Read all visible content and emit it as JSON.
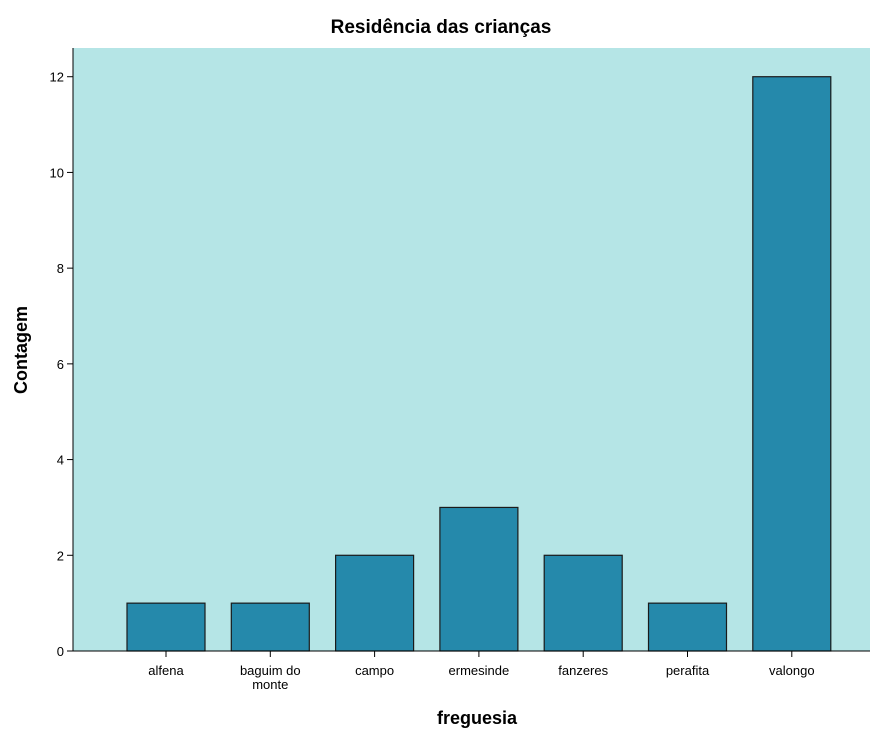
{
  "chart_data": {
    "type": "bar",
    "title": "Residência das crianças",
    "xlabel": "freguesia",
    "ylabel": "Contagem",
    "categories": [
      "alfena",
      "baguim do monte",
      "campo",
      "ermesinde",
      "fanzeres",
      "perafita",
      "valongo"
    ],
    "values": [
      1,
      1,
      2,
      3,
      2,
      1,
      12
    ],
    "ylim": [
      0,
      12.6
    ],
    "yticks": [
      0,
      2,
      4,
      6,
      8,
      10,
      12
    ],
    "grid": false,
    "legend": "none",
    "colors": {
      "plot_background": "#b5e5e6",
      "bar_fill": "#2589ab",
      "bar_stroke": "#1a1a1a"
    }
  }
}
